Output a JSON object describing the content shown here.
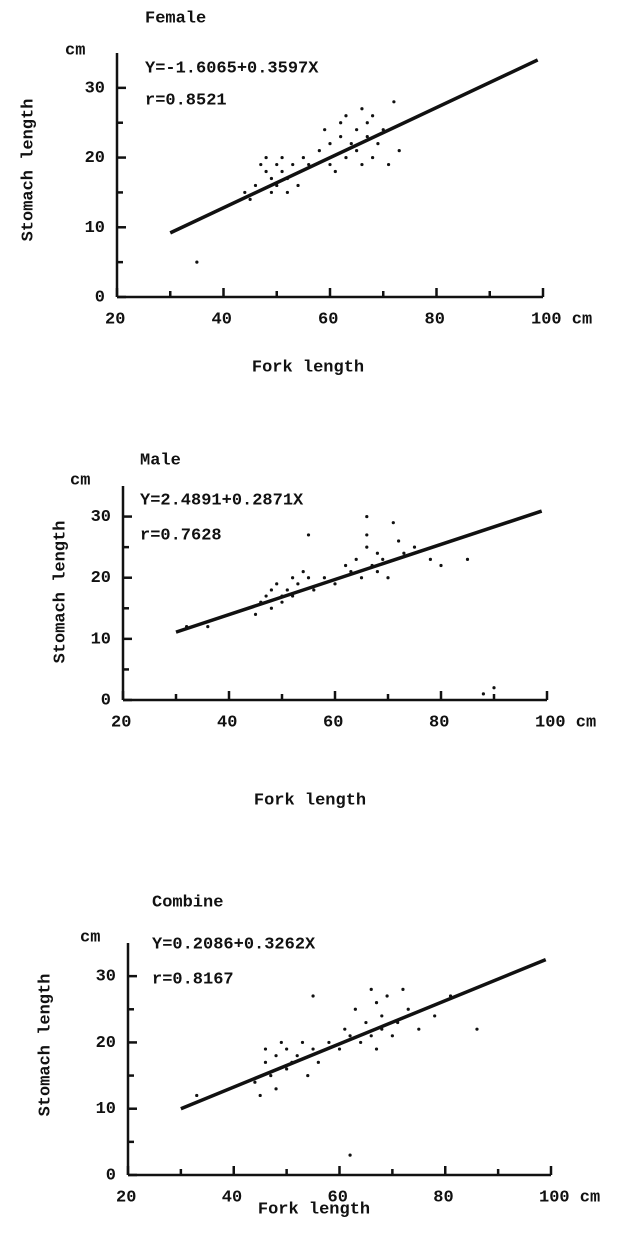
{
  "chart_data": [
    {
      "type": "scatter",
      "title": "Female",
      "equation": "Y=-1.6065+0.3597X",
      "r": "r=0.8521",
      "x_label": "Fork length",
      "y_label": "Stomach length",
      "y_unit": "cm",
      "color": "#111111",
      "xlim": [
        20,
        100
      ],
      "ylim": [
        0,
        35
      ],
      "xticks": [
        20,
        40,
        60,
        80,
        {
          "value": 100,
          "label": "100 cm"
        }
      ],
      "yticks": [
        0,
        10,
        20,
        30
      ],
      "x_minor_ticks": [
        30,
        50,
        70,
        90
      ],
      "y_minor_ticks": [
        5,
        15,
        25
      ],
      "x": [
        44,
        45,
        46,
        47,
        48,
        48,
        49,
        49,
        50,
        50,
        51,
        51,
        52,
        52,
        53,
        54,
        55,
        56,
        58,
        59,
        60,
        60,
        61,
        62,
        62,
        63,
        63,
        64,
        65,
        65,
        66,
        66,
        67,
        67,
        68,
        68,
        69,
        70,
        71,
        72,
        73,
        35
      ],
      "y": [
        15,
        14,
        16,
        19,
        18,
        20,
        15,
        17,
        19,
        16,
        18,
        20,
        17,
        15,
        19,
        16,
        20,
        19,
        21,
        24,
        19,
        22,
        18,
        23,
        25,
        20,
        26,
        22,
        21,
        24,
        19,
        27,
        23,
        25,
        20,
        26,
        22,
        24,
        19,
        28,
        21,
        5
      ],
      "fit": {
        "x": [
          30,
          99
        ],
        "y": [
          9.2,
          34.0
        ]
      }
    },
    {
      "type": "scatter",
      "title": "Male",
      "equation": "Y=2.4891+0.2871X",
      "r": "r=0.7628",
      "x_label": "Fork length",
      "y_label": "Stomach length",
      "y_unit": "cm",
      "color": "#111111",
      "xlim": [
        20,
        100
      ],
      "ylim": [
        0,
        35
      ],
      "xticks": [
        20,
        40,
        60,
        80,
        {
          "value": 100,
          "label": "100 cm"
        }
      ],
      "yticks": [
        0,
        10,
        20,
        30
      ],
      "x_minor_ticks": [
        30,
        50,
        70,
        90
      ],
      "y_minor_ticks": [
        5,
        15,
        25
      ],
      "x": [
        32,
        36,
        45,
        46,
        47,
        48,
        48,
        49,
        50,
        50,
        51,
        52,
        52,
        53,
        54,
        55,
        56,
        58,
        60,
        62,
        63,
        64,
        65,
        66,
        66,
        67,
        68,
        68,
        69,
        70,
        71,
        72,
        73,
        75,
        78,
        80,
        85,
        88,
        90,
        66,
        55
      ],
      "y": [
        12,
        12,
        14,
        16,
        17,
        15,
        18,
        19,
        16,
        17,
        18,
        20,
        17,
        19,
        21,
        20,
        18,
        20,
        19,
        22,
        21,
        23,
        20,
        30,
        25,
        22,
        24,
        21,
        23,
        20,
        29,
        26,
        24,
        25,
        23,
        22,
        23,
        1,
        2,
        27,
        27
      ],
      "fit": {
        "x": [
          30,
          99
        ],
        "y": [
          11.1,
          30.9
        ]
      }
    },
    {
      "type": "scatter",
      "title": "Combine",
      "equation": "Y=0.2086+0.3262X",
      "r": "r=0.8167",
      "x_label": "Fork length",
      "y_label": "Stomach length",
      "y_unit": "cm",
      "color": "#111111",
      "xlim": [
        20,
        100
      ],
      "ylim": [
        0,
        35
      ],
      "xticks": [
        20,
        40,
        60,
        80,
        {
          "value": 100,
          "label": "100 cm"
        }
      ],
      "yticks": [
        0,
        10,
        20,
        30
      ],
      "x_minor_ticks": [
        30,
        50,
        70,
        90
      ],
      "y_minor_ticks": [
        5,
        15,
        25
      ],
      "x": [
        33,
        44,
        45,
        46,
        46,
        47,
        48,
        48,
        49,
        50,
        50,
        51,
        52,
        53,
        54,
        55,
        55,
        56,
        58,
        60,
        61,
        62,
        63,
        64,
        65,
        66,
        66,
        67,
        67,
        68,
        68,
        69,
        70,
        71,
        72,
        73,
        75,
        78,
        81,
        86,
        62
      ],
      "y": [
        12,
        14,
        12,
        17,
        19,
        15,
        18,
        13,
        20,
        16,
        19,
        17,
        18,
        20,
        15,
        27,
        19,
        17,
        20,
        19,
        22,
        21,
        25,
        20,
        23,
        28,
        21,
        26,
        19,
        24,
        22,
        27,
        21,
        23,
        28,
        25,
        22,
        24,
        27,
        22,
        3
      ],
      "fit": {
        "x": [
          30,
          99
        ],
        "y": [
          10.0,
          32.5
        ]
      }
    }
  ]
}
